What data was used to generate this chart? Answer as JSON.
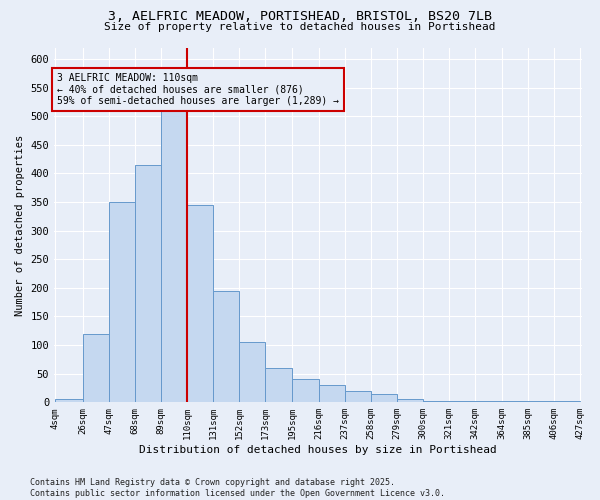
{
  "title_line1": "3, AELFRIC MEADOW, PORTISHEAD, BRISTOL, BS20 7LB",
  "title_line2": "Size of property relative to detached houses in Portishead",
  "xlabel": "Distribution of detached houses by size in Portishead",
  "ylabel": "Number of detached properties",
  "annotation_line1": "3 AELFRIC MEADOW: 110sqm",
  "annotation_line2": "← 40% of detached houses are smaller (876)",
  "annotation_line3": "59% of semi-detached houses are larger (1,289) →",
  "footer_line1": "Contains HM Land Registry data © Crown copyright and database right 2025.",
  "footer_line2": "Contains public sector information licensed under the Open Government Licence v3.0.",
  "property_size_sqm": 110,
  "bar_color": "#c5d8f0",
  "bar_edge_color": "#6699cc",
  "vline_color": "#cc0000",
  "annotation_box_color": "#cc0000",
  "background_color": "#e8eef8",
  "grid_color": "#ffffff",
  "bin_edges": [
    4,
    26,
    47,
    68,
    89,
    110,
    131,
    152,
    173,
    195,
    216,
    237,
    258,
    279,
    300,
    321,
    342,
    364,
    385,
    406,
    427
  ],
  "bin_labels": [
    "4sqm",
    "26sqm",
    "47sqm",
    "68sqm",
    "89sqm",
    "110sqm",
    "131sqm",
    "152sqm",
    "173sqm",
    "195sqm",
    "216sqm",
    "237sqm",
    "258sqm",
    "279sqm",
    "300sqm",
    "321sqm",
    "342sqm",
    "364sqm",
    "385sqm",
    "406sqm",
    "427sqm"
  ],
  "values": [
    5,
    120,
    350,
    415,
    510,
    345,
    195,
    105,
    60,
    40,
    30,
    20,
    15,
    5,
    3,
    2,
    2,
    2,
    2,
    2
  ],
  "ylim": [
    0,
    620
  ],
  "yticks": [
    0,
    50,
    100,
    150,
    200,
    250,
    300,
    350,
    400,
    450,
    500,
    550,
    600
  ]
}
